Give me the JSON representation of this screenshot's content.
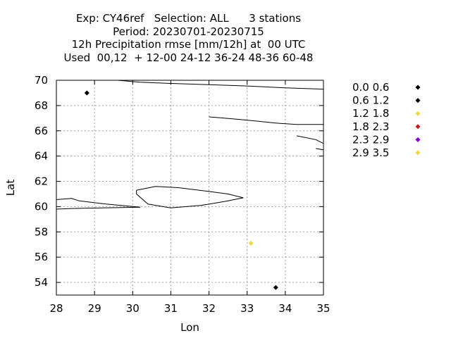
{
  "title_lines": [
    "Exp: CY46ref   Selection: ALL      3 stations",
    "Period: 20230701-20230715",
    "12h Precipitation rmse [mm/12h] at  00 UTC",
    "Used  00,12  + 12-00 24-12 36-24 48-36 60-48"
  ],
  "chart_data": {
    "type": "scatter",
    "xlabel": "Lon",
    "ylabel": "Lat",
    "xlim": [
      28,
      35
    ],
    "ylim": [
      53,
      70
    ],
    "x_ticks": [
      28,
      29,
      30,
      31,
      32,
      33,
      34,
      35
    ],
    "y_ticks": [
      54,
      56,
      58,
      60,
      62,
      64,
      66,
      68,
      70
    ],
    "grid": true,
    "legend_position": "right",
    "legend": [
      {
        "label": "0.0 0.6",
        "color": "#000000"
      },
      {
        "label": "0.6 1.2",
        "color": "#000000"
      },
      {
        "label": "1.2 1.8",
        "color": "#f0d840"
      },
      {
        "label": "1.8 2.3",
        "color": "#c02020"
      },
      {
        "label": "2.3 2.9",
        "color": "#8000d0"
      },
      {
        "label": "2.9 3.5",
        "color": "#f0d840"
      }
    ],
    "points": [
      {
        "lon": 28.8,
        "lat": 69.0,
        "color": "#000000"
      },
      {
        "lon": 33.1,
        "lat": 57.1,
        "color": "#f0d840"
      },
      {
        "lon": 33.75,
        "lat": 53.6,
        "color": "#000000"
      }
    ],
    "coastlines": [
      [
        [
          29.6,
          70.0
        ],
        [
          30.2,
          69.85
        ],
        [
          31.0,
          69.75
        ],
        [
          32.0,
          69.65
        ],
        [
          33.0,
          69.55
        ],
        [
          34.0,
          69.4
        ],
        [
          35.0,
          69.3
        ]
      ],
      [
        [
          32.0,
          67.1
        ],
        [
          32.4,
          67.0
        ],
        [
          32.8,
          66.9
        ],
        [
          33.3,
          66.75
        ],
        [
          33.8,
          66.6
        ],
        [
          34.3,
          66.5
        ],
        [
          35.0,
          66.5
        ]
      ],
      [
        [
          34.3,
          65.6
        ],
        [
          34.8,
          65.3
        ],
        [
          35.0,
          65.0
        ]
      ],
      [
        [
          34.8,
          64.6
        ],
        [
          35.0,
          64.5
        ]
      ],
      [
        [
          28.0,
          60.55
        ],
        [
          28.4,
          60.65
        ],
        [
          28.6,
          60.45
        ],
        [
          29.3,
          60.2
        ],
        [
          30.2,
          59.95
        ],
        [
          29.2,
          59.9
        ],
        [
          28.4,
          59.85
        ],
        [
          28.0,
          59.8
        ]
      ],
      [
        [
          30.1,
          61.3
        ],
        [
          30.6,
          61.6
        ],
        [
          31.2,
          61.5
        ],
        [
          32.0,
          61.2
        ],
        [
          32.5,
          61.0
        ],
        [
          32.9,
          60.7
        ],
        [
          32.4,
          60.4
        ],
        [
          31.8,
          60.1
        ],
        [
          31.0,
          59.9
        ],
        [
          30.4,
          60.2
        ],
        [
          30.1,
          61.0
        ],
        [
          30.1,
          61.3
        ]
      ]
    ]
  }
}
